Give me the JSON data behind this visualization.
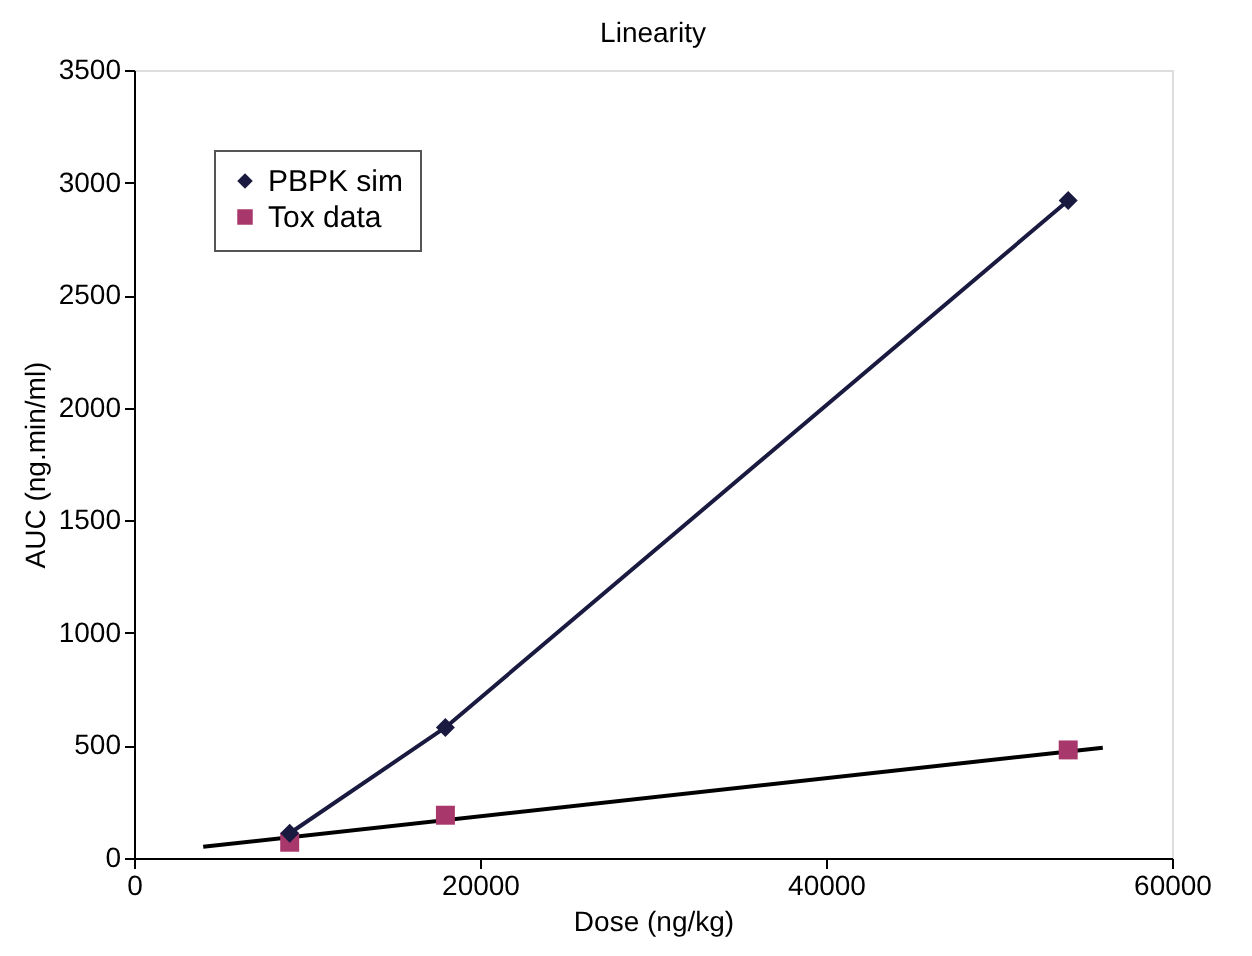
{
  "chart_data": {
    "type": "scatter",
    "title": "Linearity",
    "xlabel": "Dose (ng/kg)",
    "ylabel": "AUC (ng.min/ml)",
    "xlim": [
      0,
      60000
    ],
    "xticks": [
      0,
      20000,
      40000,
      60000
    ],
    "ylim": [
      0,
      3500
    ],
    "yticks": [
      0,
      500,
      1000,
      1500,
      2000,
      2500,
      3000,
      3500
    ],
    "grid": false,
    "legend": "top left",
    "series": [
      {
        "name": "PBPK sim",
        "type": "line",
        "marker": "diamond",
        "color": "#1a1a40",
        "x": [
          9000,
          18000,
          54000
        ],
        "values": [
          110,
          580,
          2920
        ]
      },
      {
        "name": "Tox data",
        "type": "scatter",
        "marker": "square",
        "color": "#a8386c",
        "x": [
          9000,
          18000,
          54000
        ],
        "values": [
          70,
          190,
          480
        ]
      },
      {
        "type": "line",
        "marker": "none",
        "color": "#000000",
        "x": [
          4000,
          56000
        ],
        "values": [
          50,
          490
        ]
      }
    ]
  }
}
